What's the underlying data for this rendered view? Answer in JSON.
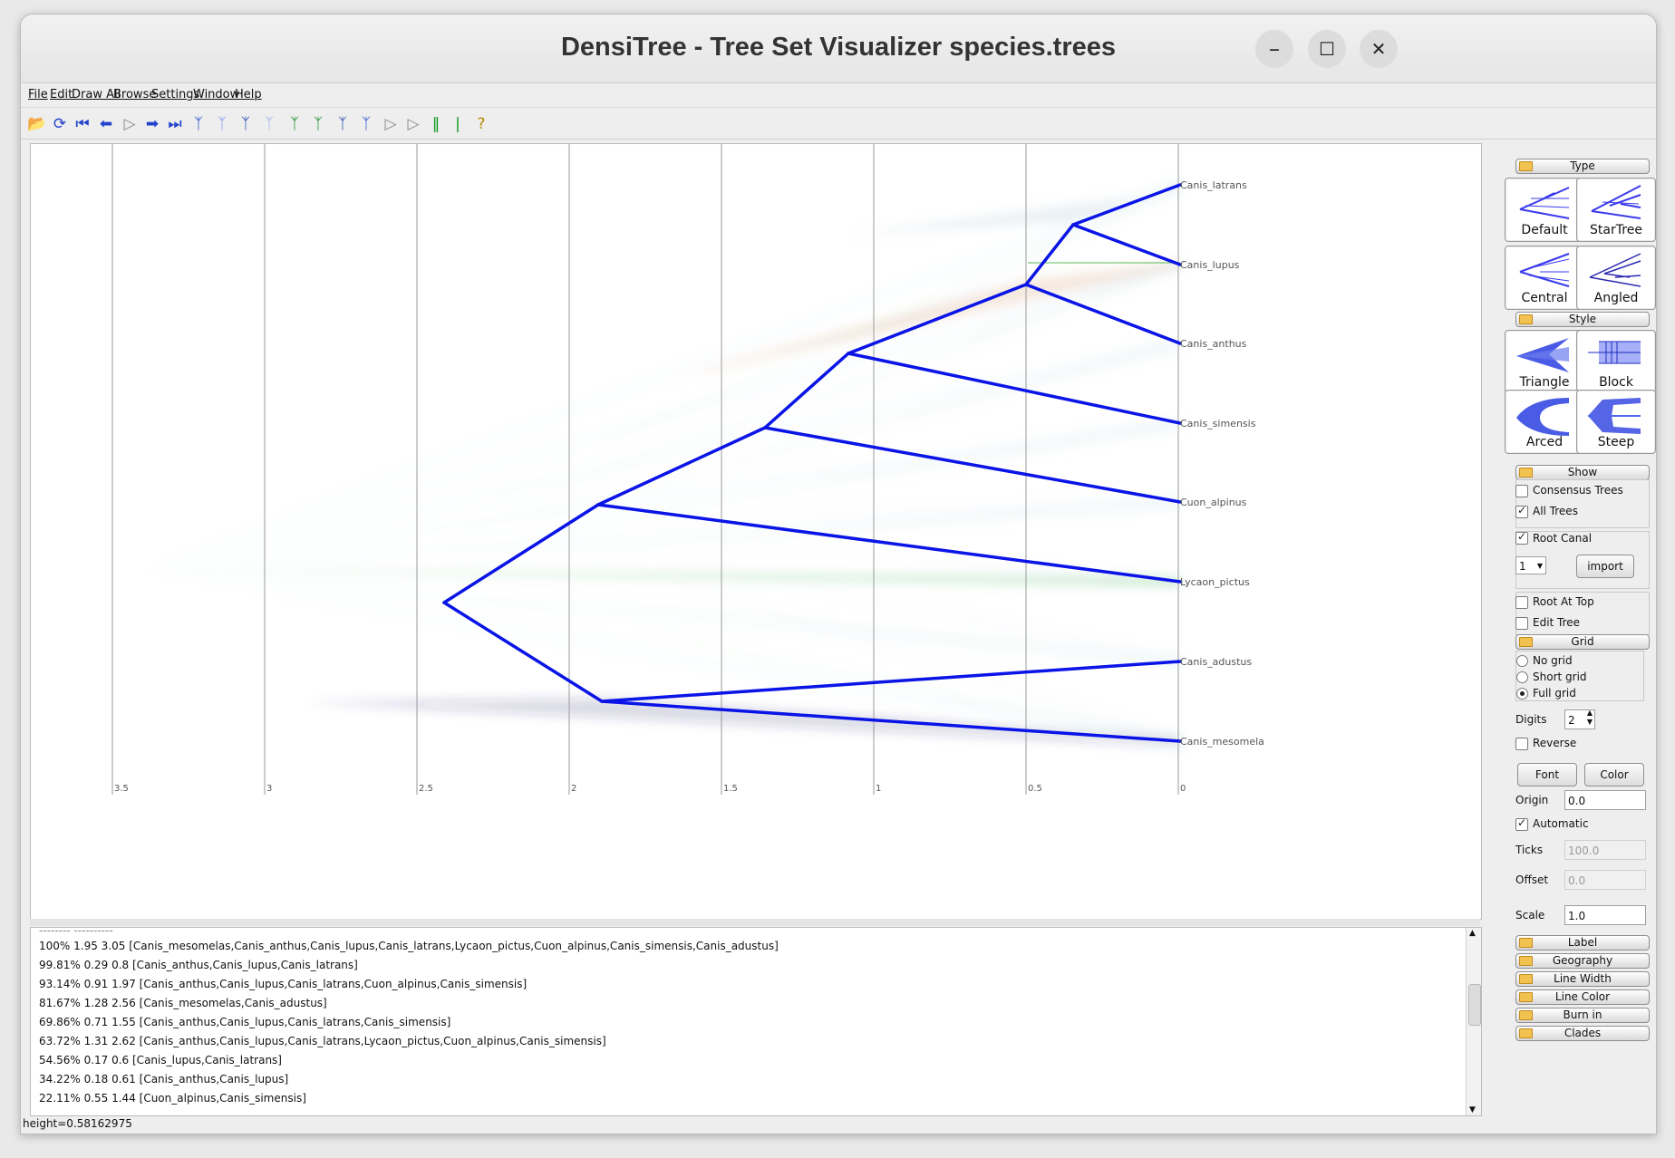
{
  "window": {
    "title": "DensiTree - Tree Set Visualizer species.trees",
    "minimize": "–",
    "maximize": "☐",
    "close": "✕"
  },
  "menu": [
    "File",
    "Edit",
    "Draw All",
    "Browse",
    "Settings",
    "Window",
    "Help"
  ],
  "toolbar": {
    "icons": [
      "open-icon",
      "reload-icon",
      "first-icon",
      "previous-icon",
      "play-icon",
      "next-icon",
      "last-icon",
      "tree-blue-icon",
      "tree-light-icon",
      "tree-bold-icon",
      "tree-fade-icon",
      "tree-green-icon",
      "tree-green-thin-icon",
      "tree-dark-icon",
      "tree-outline-icon",
      "grid-toggle-icon",
      "grid-toggle-2-icon",
      "zoom-v-icon",
      "zoom-h-icon",
      "help-icon"
    ]
  },
  "tree": {
    "taxa": [
      "Canis_latrans",
      "Canis_lupus",
      "Canis_anthus",
      "Canis_simensis",
      "Cuon_alpinus",
      "Lycaon_pictus",
      "Canis_adustus",
      "Canis_mesomela"
    ],
    "axis_ticks": [
      "3.5",
      "3",
      "2.5",
      "2",
      "1.5",
      "1",
      "0.5",
      "0"
    ]
  },
  "clades": [
    "100% 1.95 3.05 [Canis_mesomelas,Canis_anthus,Canis_lupus,Canis_latrans,Lycaon_pictus,Cuon_alpinus,Canis_simensis,Canis_adustus]",
    "99.81% 0.29 0.8 [Canis_anthus,Canis_lupus,Canis_latrans]",
    "93.14% 0.91 1.97 [Canis_anthus,Canis_lupus,Canis_latrans,Cuon_alpinus,Canis_simensis]",
    "81.67% 1.28 2.56 [Canis_mesomelas,Canis_adustus]",
    "69.86% 0.71 1.55 [Canis_anthus,Canis_lupus,Canis_latrans,Canis_simensis]",
    "63.72% 1.31 2.62 [Canis_anthus,Canis_lupus,Canis_latrans,Lycaon_pictus,Cuon_alpinus,Canis_simensis]",
    "54.56% 0.17 0.6 [Canis_lupus,Canis_latrans]",
    "34.22% 0.18 0.61 [Canis_anthus,Canis_lupus]",
    "22.11% 0.55 1.44 [Cuon_alpinus,Canis_simensis]"
  ],
  "status": "height=0.58162975",
  "panel": {
    "type_section": "Type",
    "type_tiles": [
      "Default",
      "StarTree",
      "Central",
      "Angled"
    ],
    "style_section": "Style",
    "style_tiles": [
      "Triangle",
      "Block",
      "Arced",
      "Steep"
    ],
    "show_section": "Show",
    "consensus_trees": "Consensus Trees",
    "all_trees": "All Trees",
    "root_canal": "Root Canal",
    "root_canal_select": "1",
    "import_btn": "import",
    "root_at_top": "Root At Top",
    "edit_tree": "Edit Tree",
    "grid_section": "Grid",
    "no_grid": "No grid",
    "short_grid": "Short grid",
    "full_grid": "Full grid",
    "digits_label": "Digits",
    "digits_value": "2",
    "reverse": "Reverse",
    "font_btn": "Font",
    "color_btn": "Color",
    "origin_label": "Origin",
    "origin_value": "0.0",
    "automatic": "Automatic",
    "ticks_label": "Ticks",
    "ticks_value": "100.0",
    "offset_label": "Offset",
    "offset_value": "0.0",
    "scale_label": "Scale",
    "scale_value": "1.0",
    "sections": [
      "Label",
      "Geography",
      "Line Width",
      "Line Color",
      "Burn in",
      "Clades"
    ]
  }
}
